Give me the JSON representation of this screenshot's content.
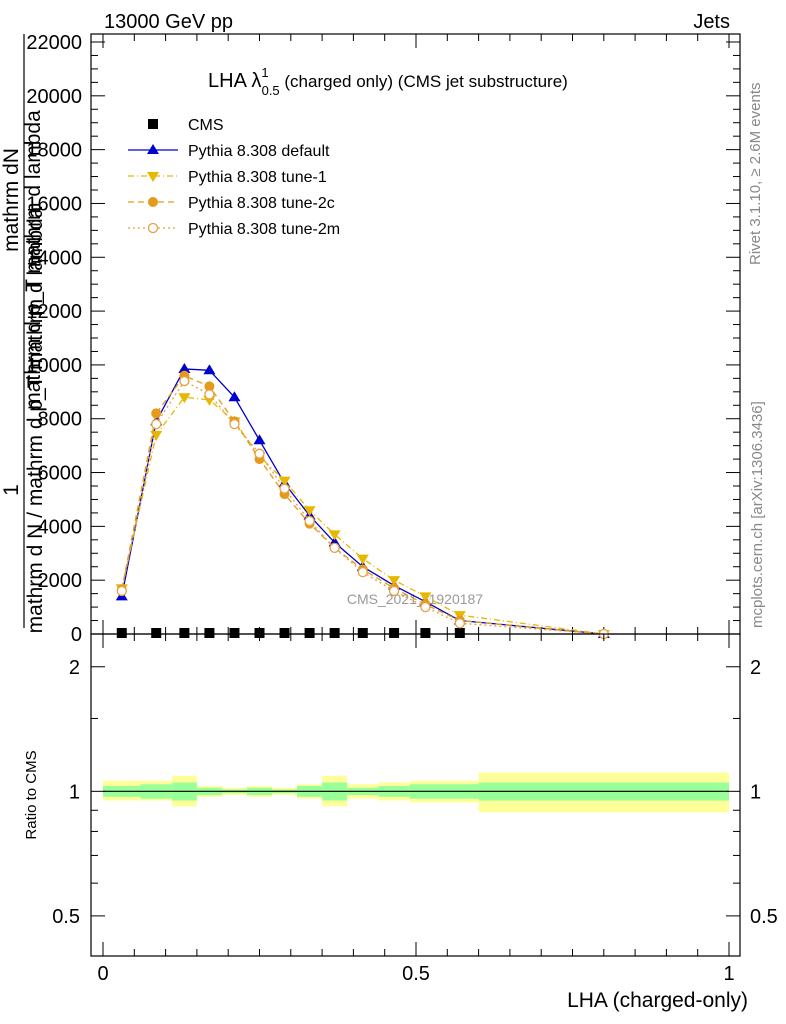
{
  "header": {
    "left": "13000 GeV pp",
    "right": "Jets"
  },
  "side_labels": {
    "rivet": "Rivet 3.1.10, ≥ 2.6M events",
    "mcplots": "mcplots.cern.ch [arXiv:1306.3436]"
  },
  "watermark": "CMS_2021_I1920187",
  "colors": {
    "cms": "#000000",
    "default": "#0000cc",
    "tune1": "#e6b800",
    "tune2c": "#e69a1a",
    "tune2m": "#e6a040",
    "band_inner": "#99ff99",
    "band_outer": "#ffff99"
  },
  "chart_data": [
    {
      "type": "line",
      "title_main": "LHA λ",
      "title_sup": "1",
      "title_sub": "0.5",
      "title_rest": " (charged only) (CMS jet substructure)",
      "ylabel_num": "1",
      "ylabel_den_lines": [
        "mathrm dN",
        "mathrm d p_T mathrm d lambda",
        "mathrm d N / mathrm d p_T mathrm d lambda"
      ],
      "ylim": [
        0,
        22000
      ],
      "xlim": [
        0,
        1
      ],
      "yticks": [
        0,
        2000,
        4000,
        6000,
        8000,
        10000,
        12000,
        14000,
        16000,
        18000,
        20000,
        22000
      ],
      "ytick_labels": [
        "0",
        "2000",
        "4000",
        "6000",
        "8000",
        "10000",
        "12000",
        "14000",
        "16000",
        "18000",
        "20000",
        "22000"
      ],
      "legend_position": "top-left",
      "x": [
        0.03,
        0.085,
        0.13,
        0.17,
        0.21,
        0.25,
        0.29,
        0.33,
        0.37,
        0.415,
        0.465,
        0.515,
        0.57,
        0.8
      ],
      "series": [
        {
          "name": "CMS",
          "marker": "square",
          "values": [
            0,
            0,
            0,
            0,
            0,
            0,
            0,
            0,
            0,
            0,
            0,
            0,
            0,
            null
          ]
        },
        {
          "name": "Pythia 8.308 default",
          "marker": "triangle-up",
          "line": "solid",
          "values": [
            1400,
            7900,
            9850,
            9800,
            8800,
            7200,
            5600,
            4400,
            3400,
            2500,
            1800,
            1200,
            500,
            0
          ]
        },
        {
          "name": "Pythia 8.308 tune-1",
          "marker": "triangle-down",
          "line": "dashdot",
          "values": [
            1700,
            7400,
            8800,
            8700,
            7900,
            6600,
            5700,
            4600,
            3700,
            2800,
            2000,
            1400,
            700,
            0
          ]
        },
        {
          "name": "Pythia 8.308 tune-2c",
          "marker": "circle",
          "line": "dashed",
          "values": [
            1650,
            8200,
            9600,
            9200,
            7900,
            6500,
            5200,
            4100,
            3200,
            2400,
            1700,
            1100,
            500,
            0
          ]
        },
        {
          "name": "Pythia 8.308 tune-2m",
          "marker": "circle-open",
          "line": "dotted",
          "values": [
            1600,
            7800,
            9400,
            8900,
            7800,
            6700,
            5400,
            4200,
            3200,
            2300,
            1600,
            1000,
            400,
            0
          ]
        }
      ]
    },
    {
      "type": "area",
      "ylabel": "Ratio to CMS",
      "ylim": [
        0.4,
        2.4
      ],
      "yscale": "log",
      "yticks": [
        0.5,
        1,
        2
      ],
      "ytick_labels": [
        "0.5",
        "1",
        "2"
      ],
      "xlim": [
        0,
        1
      ],
      "xticks": [
        0,
        0.5,
        1
      ],
      "xtick_labels": [
        "0",
        "0.5",
        "1"
      ],
      "xlabel": "LHA (charged-only)",
      "bin_edges": [
        0,
        0.06,
        0.11,
        0.15,
        0.19,
        0.23,
        0.27,
        0.31,
        0.35,
        0.39,
        0.44,
        0.49,
        0.54,
        0.6,
        1.0
      ],
      "inner_band": {
        "lo": [
          0.97,
          0.96,
          0.95,
          0.98,
          0.99,
          0.98,
          0.99,
          0.97,
          0.95,
          0.98,
          0.97,
          0.96,
          0.96,
          0.95,
          0.91
        ],
        "hi": [
          1.03,
          1.04,
          1.05,
          1.02,
          1.01,
          1.02,
          1.01,
          1.03,
          1.05,
          1.02,
          1.03,
          1.04,
          1.04,
          1.05,
          1.09
        ]
      },
      "outer_band": {
        "lo": [
          0.95,
          0.95,
          0.92,
          0.97,
          0.98,
          0.97,
          0.98,
          0.96,
          0.92,
          0.96,
          0.95,
          0.94,
          0.94,
          0.89,
          0.83
        ],
        "hi": [
          1.06,
          1.06,
          1.09,
          1.03,
          1.02,
          1.03,
          1.02,
          1.04,
          1.09,
          1.04,
          1.05,
          1.06,
          1.06,
          1.11,
          1.18
        ]
      },
      "ref_line": 1
    }
  ]
}
